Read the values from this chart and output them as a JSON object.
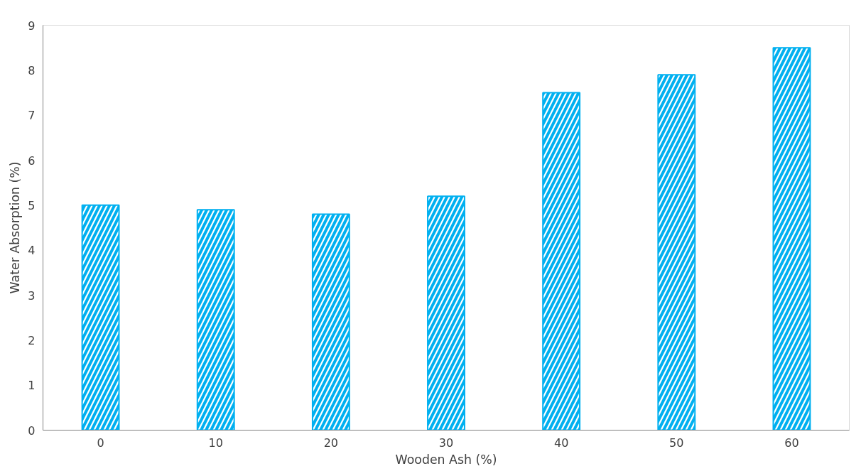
{
  "chart_data": {
    "type": "bar",
    "xlabel": "Wooden Ash (%)",
    "ylabel": "Water Absorption (%)",
    "categories": [
      "0",
      "10",
      "20",
      "30",
      "40",
      "50",
      "60"
    ],
    "values": [
      5.0,
      4.9,
      4.8,
      5.2,
      7.5,
      7.9,
      8.5
    ],
    "color": "#00b0f0",
    "ylim": [
      0,
      9
    ],
    "yticks": [
      0,
      1,
      2,
      3,
      4,
      5,
      6,
      7,
      8,
      9
    ],
    "grid": false
  }
}
